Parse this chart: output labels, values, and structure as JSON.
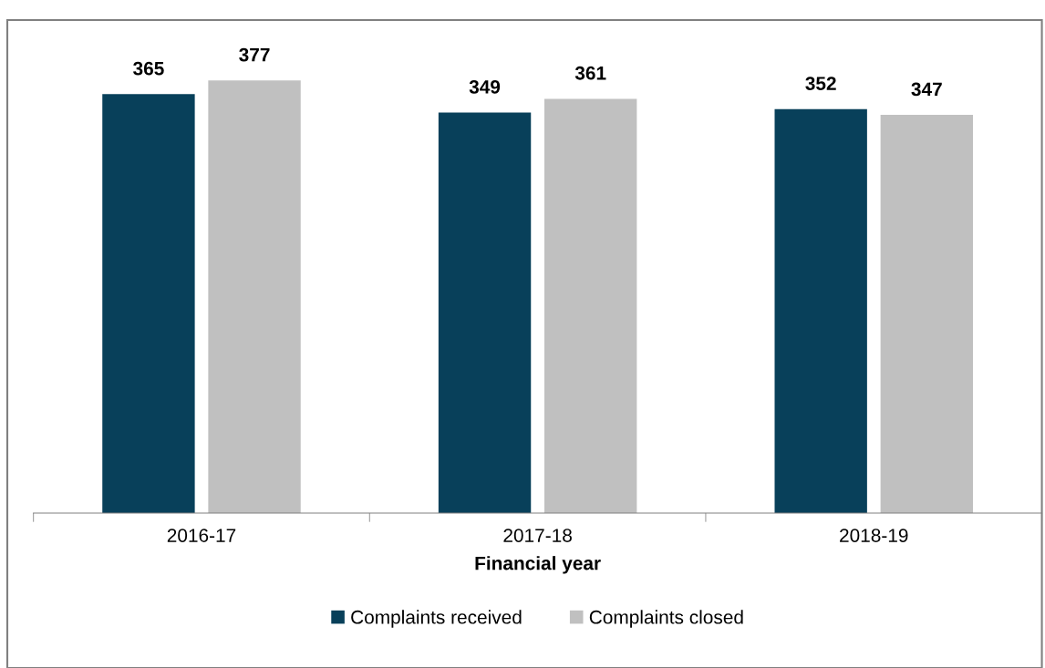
{
  "chart_data": {
    "type": "bar",
    "xlabel": "Financial year",
    "categories": [
      "2016-17",
      "2017-18",
      "2018-19"
    ],
    "series": [
      {
        "name": "Complaints received",
        "color": "#08405a",
        "values": [
          365,
          349,
          352
        ]
      },
      {
        "name": "Complaints closed",
        "color": "#c0c0c0",
        "values": [
          377,
          361,
          347
        ]
      }
    ],
    "tick_labels": "x",
    "data_labels": true,
    "grid": false,
    "legend": "bottom"
  }
}
